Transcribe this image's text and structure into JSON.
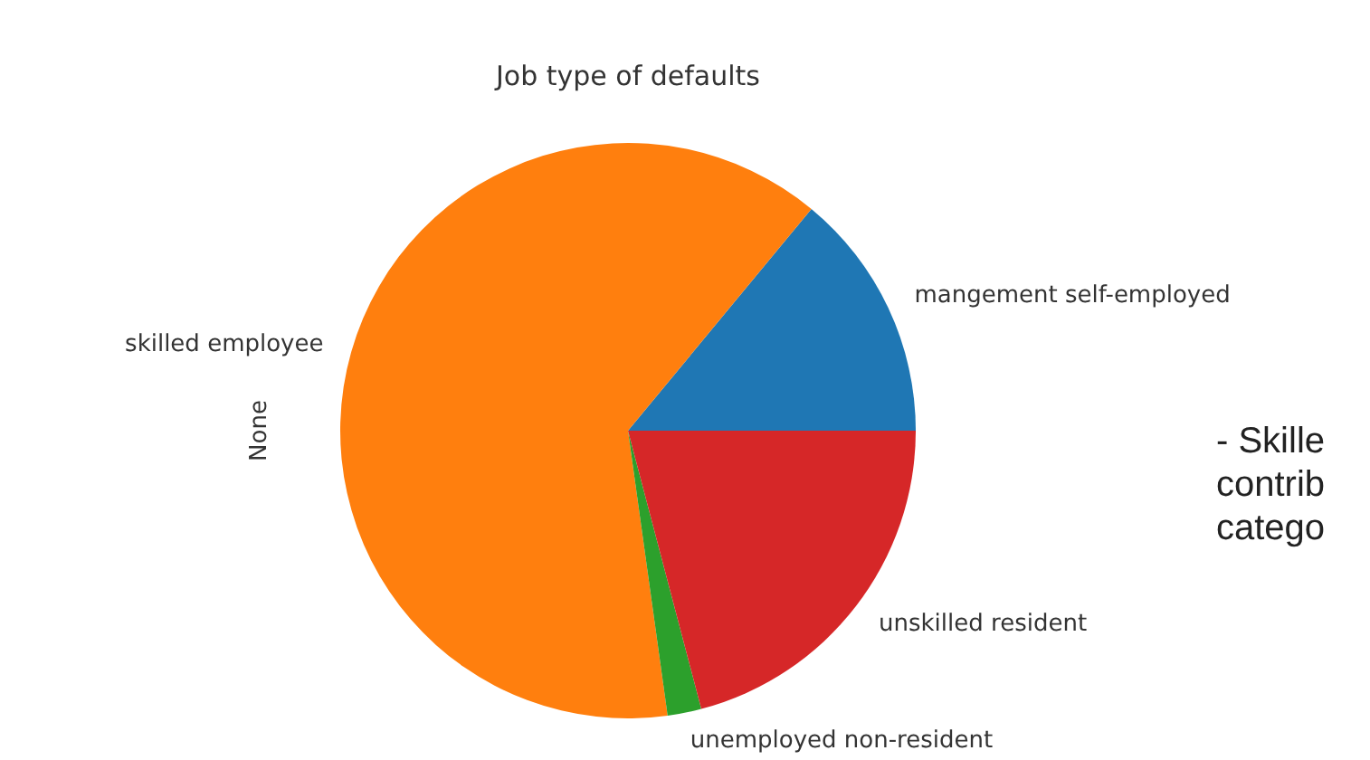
{
  "chart_data": {
    "type": "pie",
    "title": "Job type of defaults",
    "ylabel": "None",
    "categories": [
      "mangement self-employed",
      "skilled employee",
      "unemployed non-resident",
      "unskilled resident"
    ],
    "values": [
      14,
      63.2,
      1.9,
      20.9
    ],
    "colors": [
      "#1f77b4",
      "#ff7f0e",
      "#2ca02c",
      "#d62728"
    ],
    "annotations": [
      "- Skille",
      "contrib",
      "catego"
    ]
  }
}
